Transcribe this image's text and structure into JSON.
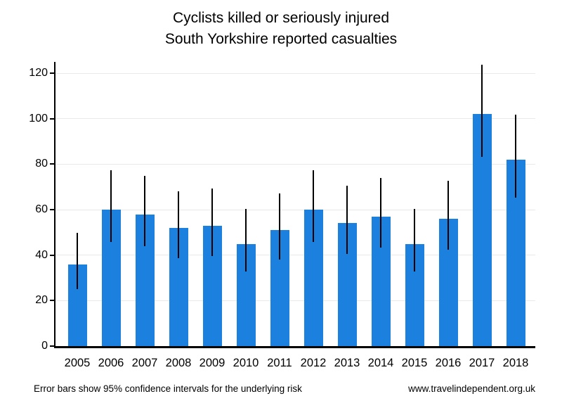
{
  "title": {
    "line1": "Cyclists killed or seriously injured",
    "line2": "South Yorkshire reported casualties"
  },
  "footer": {
    "note": "Error bars show 95% confidence intervals for the underlying risk",
    "website": "www.travelindependent.org.uk"
  },
  "chart_data": {
    "type": "bar",
    "title": "Cyclists killed or seriously injured",
    "subtitle": "South Yorkshire reported casualties",
    "categories": [
      "2005",
      "2006",
      "2007",
      "2008",
      "2009",
      "2010",
      "2011",
      "2012",
      "2013",
      "2014",
      "2015",
      "2016",
      "2017",
      "2018"
    ],
    "values": [
      36,
      60,
      58,
      52,
      53,
      45,
      51,
      60,
      54,
      57,
      45,
      56,
      102,
      82
    ],
    "error_bars": {
      "meaning": "95% confidence intervals for the underlying risk",
      "low": [
        25.2,
        45.8,
        44.0,
        38.8,
        39.7,
        32.8,
        38.0,
        45.8,
        40.6,
        43.2,
        32.8,
        42.3,
        83.2,
        65.2
      ],
      "high": [
        49.8,
        77.2,
        75.0,
        68.2,
        69.3,
        60.2,
        67.1,
        77.2,
        70.5,
        73.9,
        60.2,
        72.8,
        123.9,
        101.8
      ]
    },
    "xlabel": "",
    "ylabel": "",
    "ylim": [
      0,
      125
    ],
    "yticks": [
      0,
      20,
      40,
      60,
      80,
      100,
      120
    ],
    "grid": "horizontal",
    "legend": "none",
    "colors": {
      "bar": "#1c81de",
      "error_bar": "#000000",
      "gridline": "#e9e9e9",
      "axis": "#000000",
      "text": "#000000"
    },
    "footnote": "Error bars show 95% confidence intervals for the underlying risk",
    "source": "www.travelindependent.org.uk"
  }
}
